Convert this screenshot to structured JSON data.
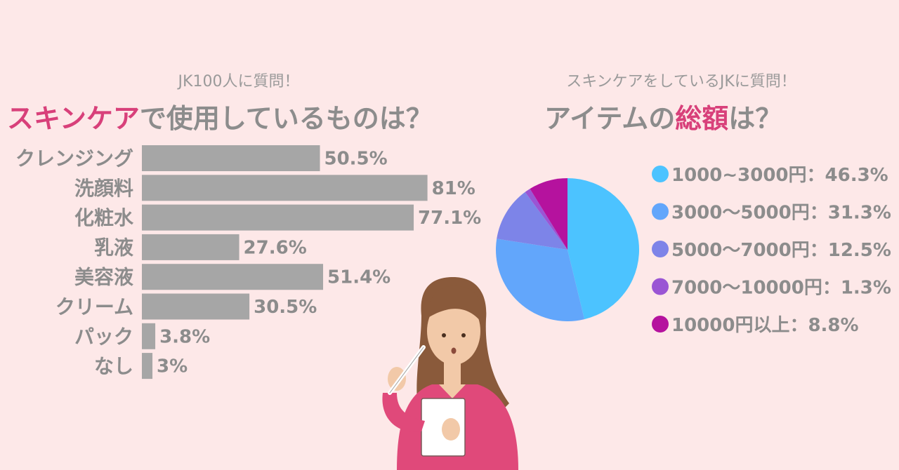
{
  "left": {
    "subtitle": "JK100人に質問！",
    "title_highlight": "スキンケア",
    "title_rest": "で使用しているものは？"
  },
  "right": {
    "subtitle": "スキンケアをしているJKに質問！",
    "title_a": "アイテムの",
    "title_highlight": "総額",
    "title_b": "は？"
  },
  "colors": {
    "bar": "#a6a6a6",
    "highlight": "#d8407a",
    "text": "#8c8c8c",
    "background": "#fde8e8"
  },
  "chart_data": [
    {
      "type": "bar",
      "orientation": "horizontal",
      "categories": [
        "クレンジング",
        "洗顔料",
        "化粧水",
        "乳液",
        "美容液",
        "クリーム",
        "パック",
        "なし"
      ],
      "values": [
        50.5,
        81,
        77.1,
        27.6,
        51.4,
        30.5,
        3.8,
        3
      ],
      "value_labels": [
        "50.5%",
        "81%",
        "77.1%",
        "27.6%",
        "51.4%",
        "30.5%",
        "3.8%",
        "3%"
      ],
      "xlim": [
        0,
        100
      ]
    },
    {
      "type": "pie",
      "slices": [
        {
          "label": "1000~3000円：46.3%",
          "value": 46.3,
          "color": "#4cc3ff"
        },
        {
          "label": "3000～5000円：31.3%",
          "value": 31.3,
          "color": "#62a6fb"
        },
        {
          "label": "5000～7000円：12.5%",
          "value": 12.5,
          "color": "#7d84e8"
        },
        {
          "label": "7000～10000円：1.3%",
          "value": 1.3,
          "color": "#9a55d4"
        },
        {
          "label": "10000円以上：8.8%",
          "value": 8.8,
          "color": "#b5129e"
        }
      ]
    }
  ]
}
